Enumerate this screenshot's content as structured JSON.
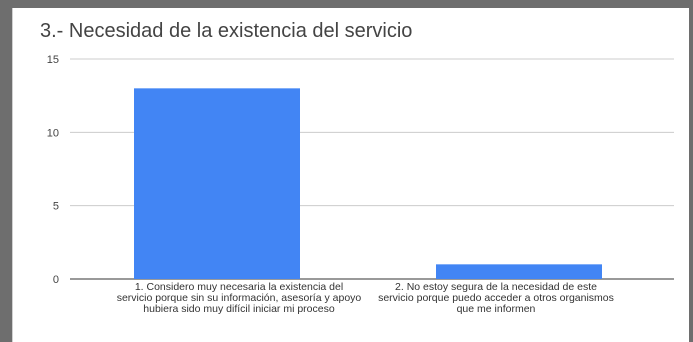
{
  "chart_data": {
    "type": "bar",
    "title": "3.- Necesidad de la existencia del servicio",
    "categories": [
      "1. Considero muy necesaria la existencia del servicio porque sin su información, asesoría y apoyo hubiera sido muy difícil iniciar mi proceso",
      "2. No estoy segura de la necesidad de este servicio porque puedo acceder a otros organismos que me informen"
    ],
    "values": [
      13,
      1
    ],
    "ylim": [
      0,
      15
    ],
    "yticks": [
      "0",
      "5",
      "10",
      "15"
    ],
    "grid": true,
    "bar_color": "#4285f4",
    "xlabel": "",
    "ylabel": ""
  }
}
